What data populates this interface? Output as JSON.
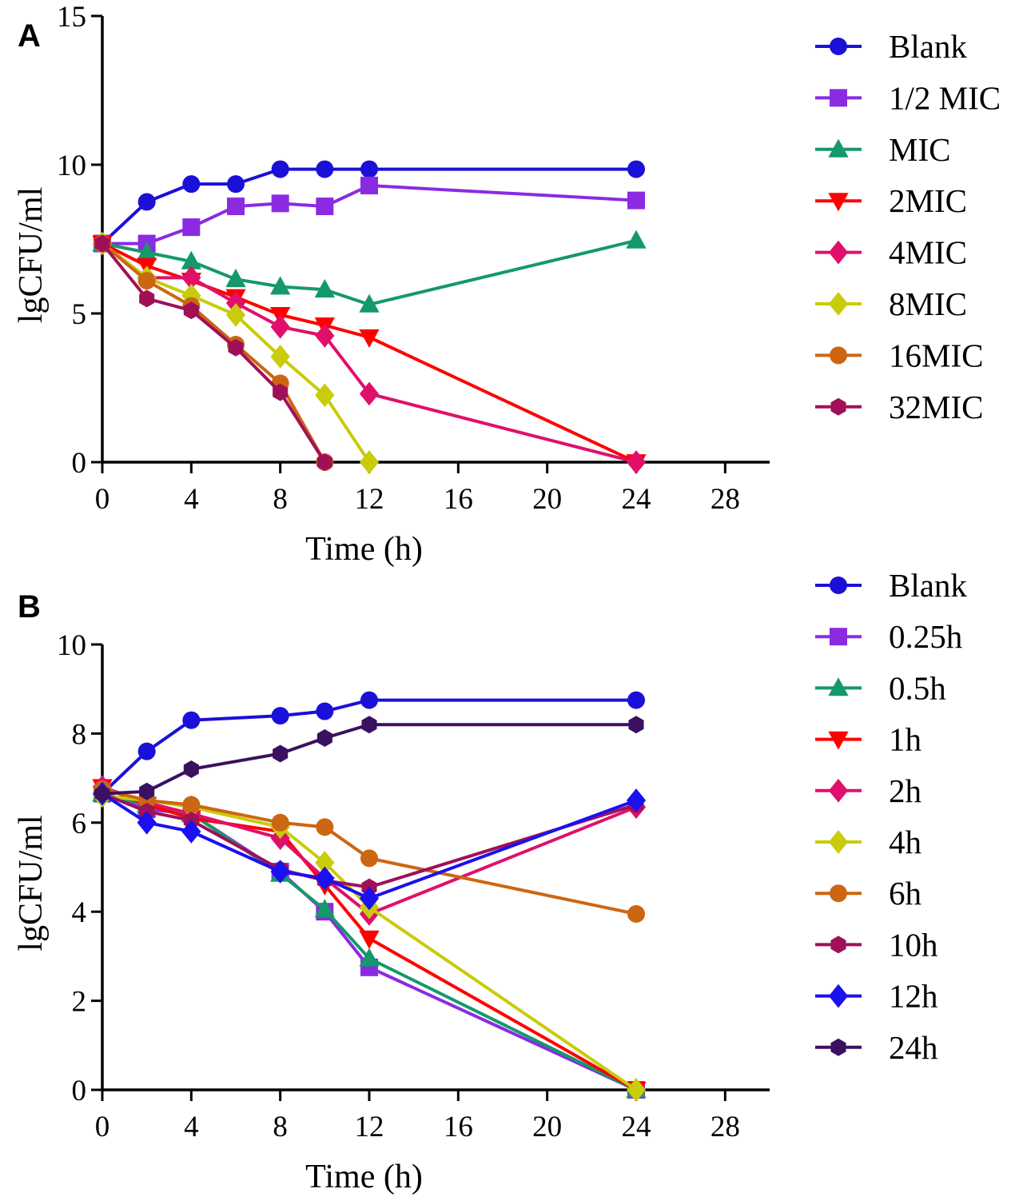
{
  "chart_data": [
    {
      "type": "line",
      "panel_label": "A",
      "xlabel": "Time (h)",
      "ylabel": "lgCFU/ml",
      "xlim": [
        0,
        30
      ],
      "ylim": [
        0,
        15
      ],
      "xticks": [
        0,
        4,
        8,
        12,
        16,
        20,
        24,
        28
      ],
      "yticks": [
        0,
        5,
        10,
        15
      ],
      "legend_position": "right",
      "series": [
        {
          "name": "Blank",
          "color": "#1a10d8",
          "marker": "circle",
          "x": [
            0,
            2,
            4,
            6,
            8,
            10,
            12,
            24
          ],
          "y": [
            7.35,
            8.75,
            9.35,
            9.35,
            9.85,
            9.85,
            9.85,
            9.85
          ]
        },
        {
          "name": "1/2 MIC",
          "color": "#8a2be2",
          "marker": "square",
          "x": [
            0,
            2,
            4,
            6,
            8,
            10,
            12,
            24
          ],
          "y": [
            7.35,
            7.35,
            7.9,
            8.6,
            8.7,
            8.6,
            9.3,
            8.8
          ]
        },
        {
          "name": "MIC",
          "color": "#14996a",
          "marker": "triangle",
          "x": [
            0,
            2,
            4,
            6,
            8,
            10,
            12,
            24
          ],
          "y": [
            7.35,
            7.05,
            6.75,
            6.15,
            5.9,
            5.8,
            5.3,
            7.45
          ]
        },
        {
          "name": "2MIC",
          "color": "#ff0000",
          "marker": "triangle-down",
          "x": [
            0,
            2,
            4,
            6,
            8,
            10,
            12,
            24
          ],
          "y": [
            7.35,
            6.6,
            6.1,
            5.55,
            4.95,
            4.6,
            4.2,
            0
          ]
        },
        {
          "name": "4MIC",
          "color": "#e0106a",
          "marker": "diamond",
          "x": [
            0,
            2,
            4,
            6,
            8,
            10,
            12,
            24
          ],
          "y": [
            7.35,
            6.2,
            6.2,
            5.35,
            4.55,
            4.25,
            2.3,
            0
          ]
        },
        {
          "name": "8MIC",
          "color": "#c8cc0a",
          "marker": "diamond",
          "x": [
            0,
            2,
            4,
            6,
            8,
            10,
            12
          ],
          "y": [
            7.35,
            6.2,
            5.6,
            4.95,
            3.55,
            2.25,
            0
          ]
        },
        {
          "name": "16MIC",
          "color": "#cc6612",
          "marker": "circle",
          "x": [
            0,
            2,
            4,
            6,
            8,
            10
          ],
          "y": [
            7.35,
            6.1,
            5.25,
            3.95,
            2.65,
            0
          ]
        },
        {
          "name": "32MIC",
          "color": "#a01058",
          "marker": "hexagon",
          "x": [
            0,
            2,
            4,
            6,
            8,
            10
          ],
          "y": [
            7.35,
            5.5,
            5.1,
            3.85,
            2.35,
            0
          ]
        }
      ]
    },
    {
      "type": "line",
      "panel_label": "B",
      "xlabel": "Time (h)",
      "ylabel": "lgCFU/ml",
      "xlim": [
        0,
        30
      ],
      "ylim": [
        0,
        10
      ],
      "xticks": [
        0,
        4,
        8,
        12,
        16,
        20,
        24,
        28
      ],
      "yticks": [
        0,
        2,
        4,
        6,
        8,
        10
      ],
      "legend_position": "right",
      "series": [
        {
          "name": "Blank",
          "color": "#1a10d8",
          "marker": "circle",
          "x": [
            0,
            2,
            4,
            8,
            10,
            12,
            24
          ],
          "y": [
            6.65,
            7.6,
            8.3,
            8.4,
            8.5,
            8.75,
            8.75
          ]
        },
        {
          "name": "0.25h",
          "color": "#8a2be2",
          "marker": "square",
          "x": [
            0,
            2,
            4,
            8,
            10,
            12,
            24
          ],
          "y": [
            6.65,
            6.3,
            6.2,
            4.9,
            4.0,
            2.75,
            0
          ]
        },
        {
          "name": "0.5h",
          "color": "#14996a",
          "marker": "triangle",
          "x": [
            0,
            2,
            4,
            8,
            10,
            12,
            24
          ],
          "y": [
            6.65,
            6.4,
            6.2,
            4.85,
            4.05,
            2.95,
            0
          ]
        },
        {
          "name": "1h",
          "color": "#ff0000",
          "marker": "triangle-down",
          "x": [
            0,
            2,
            4,
            8,
            10,
            12,
            24
          ],
          "y": [
            6.8,
            6.4,
            6.1,
            5.8,
            4.6,
            3.4,
            0
          ]
        },
        {
          "name": "2h",
          "color": "#e0106a",
          "marker": "diamond",
          "x": [
            0,
            2,
            4,
            8,
            10,
            12,
            24
          ],
          "y": [
            6.8,
            6.45,
            6.2,
            5.65,
            4.75,
            3.95,
            6.35
          ]
        },
        {
          "name": "4h",
          "color": "#c8cc0a",
          "marker": "diamond",
          "x": [
            0,
            2,
            4,
            8,
            10,
            12,
            24
          ],
          "y": [
            6.6,
            6.5,
            6.35,
            5.9,
            5.1,
            4.1,
            0
          ]
        },
        {
          "name": "6h",
          "color": "#cc6612",
          "marker": "circle",
          "x": [
            0,
            2,
            4,
            8,
            10,
            12,
            24
          ],
          "y": [
            6.75,
            6.5,
            6.4,
            6.0,
            5.9,
            5.2,
            3.95
          ]
        },
        {
          "name": "10h",
          "color": "#a01058",
          "marker": "hexagon",
          "x": [
            0,
            2,
            4,
            8,
            10,
            12,
            24
          ],
          "y": [
            6.65,
            6.25,
            6.05,
            4.95,
            4.7,
            4.55,
            6.4
          ]
        },
        {
          "name": "12h",
          "color": "#1a10f0",
          "marker": "diamond",
          "x": [
            0,
            2,
            4,
            8,
            10,
            12,
            24
          ],
          "y": [
            6.65,
            6.0,
            5.8,
            4.9,
            4.75,
            4.3,
            6.5
          ]
        },
        {
          "name": "24h",
          "color": "#3a1060",
          "marker": "hexagon",
          "x": [
            0,
            2,
            4,
            8,
            10,
            12,
            24
          ],
          "y": [
            6.65,
            6.7,
            7.2,
            7.55,
            7.9,
            8.2,
            8.2
          ]
        }
      ]
    }
  ]
}
